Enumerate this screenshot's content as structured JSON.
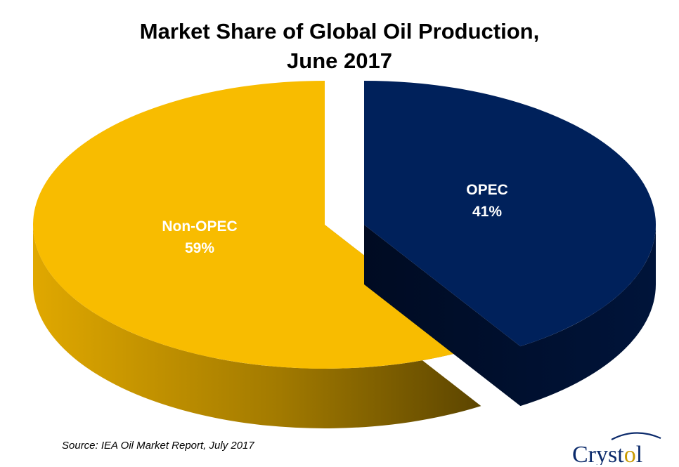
{
  "title_lines": [
    "Market Share of Global Oil Production,",
    "June 2017"
  ],
  "source": "Source: IEA Oil Market Report, July 2017",
  "logo_text": "Crystol",
  "colors": {
    "opec_top": "#00215B",
    "opec_side": "#000D2B",
    "nonopec_top": "#F8BC00",
    "nonopec_side": "#C99A00"
  },
  "chart_data": {
    "type": "pie",
    "style": "3d-exploded",
    "title": "Market Share of Global Oil Production, June 2017",
    "slices": [
      {
        "label": "OPEC",
        "value": 41,
        "value_label": "41%",
        "color": "#00215B"
      },
      {
        "label": "Non-OPEC",
        "value": 59,
        "value_label": "59%",
        "color": "#F8BC00"
      }
    ]
  }
}
